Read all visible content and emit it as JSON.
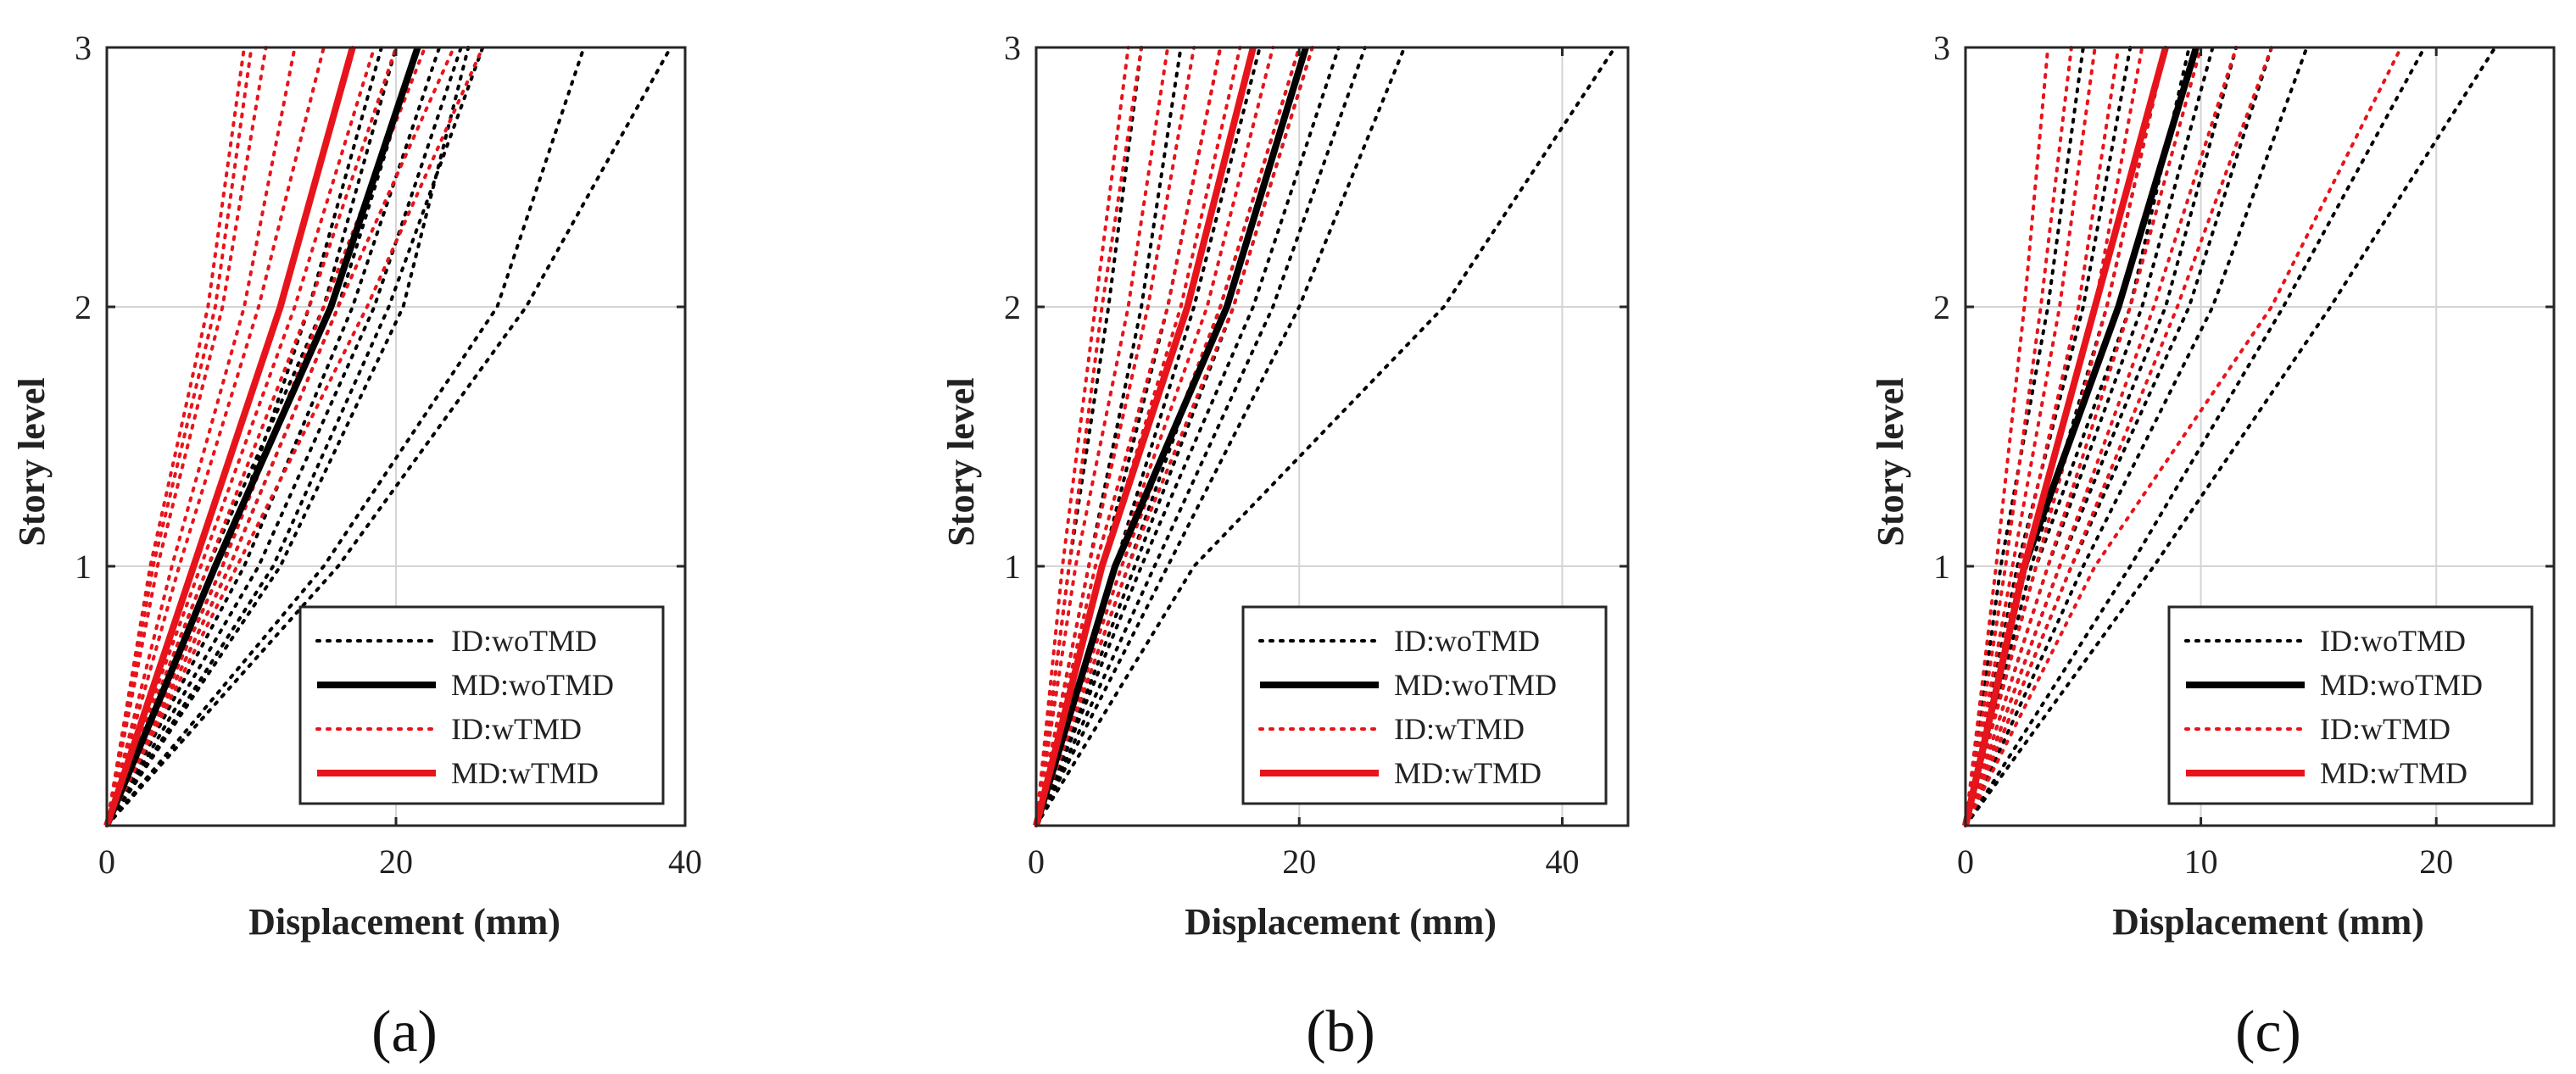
{
  "chart_data": [
    {
      "type": "line",
      "panel_label": "(a)",
      "xlabel": "Displacement (mm)",
      "ylabel": "Story level",
      "xlim": [
        0,
        40
      ],
      "ylim": [
        0,
        3
      ],
      "xticks": [
        0,
        20,
        40
      ],
      "xtick_labels": [
        "0",
        "20",
        "40"
      ],
      "yticks": [
        1,
        2,
        3
      ],
      "ytick_labels": [
        "1",
        "2",
        "3"
      ],
      "grid": true,
      "legend_position": "bottom-right",
      "legend": [
        "ID:woTMD",
        "MD:woTMD",
        "ID:wTMD",
        "MD:wTMD"
      ],
      "y": [
        0,
        1,
        2,
        3
      ],
      "series": [
        {
          "name": "ID:woTMD",
          "style": "dotted",
          "color": "#000000",
          "profiles": [
            [
              0,
              7,
              15,
              20
            ],
            [
              0,
              8.5,
              16,
              21.5
            ],
            [
              0,
              9.5,
              17,
              23
            ],
            [
              0,
              10.5,
              18.5,
              24.5
            ],
            [
              0,
              8,
              14,
              19
            ],
            [
              0,
              11.5,
              19.5,
              26
            ],
            [
              0,
              15,
              27,
              33
            ],
            [
              0,
              16,
              29,
              39
            ],
            [
              0,
              12,
              20.5,
              25
            ]
          ]
        },
        {
          "name": "MD:woTMD",
          "style": "solid",
          "color": "#000000",
          "profiles": [
            [
              0,
              7.5,
              15.5,
              21.5
            ]
          ]
        },
        {
          "name": "ID:wTMD",
          "style": "dotted",
          "color": "#e8141b",
          "profiles": [
            [
              0,
              3,
              7,
              9.5
            ],
            [
              0,
              3.5,
              8,
              11
            ],
            [
              0,
              4.5,
              9.5,
              13
            ],
            [
              0,
              5,
              10.5,
              15
            ],
            [
              0,
              6,
              12,
              17
            ],
            [
              0,
              6.5,
              13,
              18.5
            ],
            [
              0,
              7,
              14,
              20
            ],
            [
              0,
              8,
              15,
              22
            ],
            [
              0,
              8.5,
              16,
              24
            ],
            [
              0,
              9,
              18,
              26
            ],
            [
              0,
              3.2,
              7.5,
              10
            ]
          ]
        },
        {
          "name": "MD:wTMD",
          "style": "solid",
          "color": "#e8141b",
          "profiles": [
            [
              0,
              6,
              12,
              17
            ]
          ]
        }
      ]
    },
    {
      "type": "line",
      "panel_label": "(b)",
      "xlabel": "Displacement (mm)",
      "ylabel": "Story level",
      "xlim": [
        0,
        45
      ],
      "ylim": [
        0,
        3
      ],
      "xticks": [
        0,
        20,
        40
      ],
      "xtick_labels": [
        "0",
        "20",
        "40"
      ],
      "yticks": [
        1,
        2,
        3
      ],
      "ytick_labels": [
        "1",
        "2",
        "3"
      ],
      "grid": true,
      "legend_position": "bottom-right",
      "legend": [
        "ID:woTMD",
        "MD:woTMD",
        "ID:wTMD",
        "MD:wTMD"
      ],
      "y": [
        0,
        1,
        2,
        3
      ],
      "series": [
        {
          "name": "ID:woTMD",
          "style": "dotted",
          "color": "#000000",
          "profiles": [
            [
              0,
              2.5,
              5.5,
              8
            ],
            [
              0,
              4,
              8,
              11
            ],
            [
              0,
              5,
              10,
              14
            ],
            [
              0,
              6,
              12,
              17
            ],
            [
              0,
              7,
              14,
              20
            ],
            [
              0,
              7.5,
              15,
              21
            ],
            [
              0,
              8,
              16.5,
              23
            ],
            [
              0,
              9,
              18,
              25
            ],
            [
              0,
              10,
              20,
              28
            ],
            [
              0,
              12,
              31,
              44
            ]
          ]
        },
        {
          "name": "MD:woTMD",
          "style": "solid",
          "color": "#000000",
          "profiles": [
            [
              0,
              6,
              14.5,
              20.5
            ]
          ]
        },
        {
          "name": "ID:wTMD",
          "style": "dotted",
          "color": "#e8141b",
          "profiles": [
            [
              0,
              2,
              4.5,
              7
            ],
            [
              0,
              2.5,
              5,
              8
            ],
            [
              0,
              3,
              7,
              10
            ],
            [
              0,
              4,
              8.5,
              12
            ],
            [
              0,
              4.5,
              10,
              14
            ],
            [
              0,
              5,
              11,
              15.5
            ],
            [
              0,
              6,
              13,
              18
            ],
            [
              0,
              6.5,
              14,
              20
            ],
            [
              0,
              7,
              15,
              21
            ]
          ]
        },
        {
          "name": "MD:wTMD",
          "style": "solid",
          "color": "#e8141b",
          "profiles": [
            [
              0,
              5,
              11.5,
              16.5
            ]
          ]
        }
      ]
    },
    {
      "type": "line",
      "panel_label": "(c)",
      "xlabel": "Displacement (mm)",
      "ylabel": "Story level",
      "xlim": [
        0,
        25
      ],
      "ylim": [
        0,
        3
      ],
      "xticks": [
        0,
        10,
        20
      ],
      "xtick_labels": [
        "0",
        "10",
        "20"
      ],
      "yticks": [
        1,
        2,
        3
      ],
      "ytick_labels": [
        "1",
        "2",
        "3"
      ],
      "grid": true,
      "legend_position": "bottom-right",
      "legend": [
        "ID:woTMD",
        "MD:woTMD",
        "ID:wTMD",
        "MD:wTMD"
      ],
      "y": [
        0,
        1,
        2,
        3
      ],
      "series": [
        {
          "name": "ID:woTMD",
          "style": "dotted",
          "color": "#000000",
          "profiles": [
            [
              0,
              1.5,
              3.5,
              5
            ],
            [
              0,
              2.2,
              5,
              7
            ],
            [
              0,
              2.8,
              6,
              8.5
            ],
            [
              0,
              3,
              7,
              9.5
            ],
            [
              0,
              3.5,
              7.5,
              10.5
            ],
            [
              0,
              4,
              8.5,
              11.5
            ],
            [
              0,
              4.5,
              9.5,
              13
            ],
            [
              0,
              5,
              10.5,
              14.5
            ],
            [
              0,
              7,
              13.5,
              19.5
            ],
            [
              0,
              8,
              15.5,
              22.5
            ]
          ]
        },
        {
          "name": "MD:woTMD",
          "style": "solid",
          "color": "#000000",
          "profiles": [
            [
              0,
              2.5,
              6.5,
              9.8
            ]
          ]
        },
        {
          "name": "ID:wTMD",
          "style": "dotted",
          "color": "#e8141b",
          "profiles": [
            [
              0,
              1.3,
              2.5,
              3.5
            ],
            [
              0,
              1.7,
              3.2,
              4.5
            ],
            [
              0,
              2,
              4,
              5.5
            ],
            [
              0,
              2.3,
              4.8,
              6.5
            ],
            [
              0,
              2.6,
              5.5,
              7.5
            ],
            [
              0,
              3,
              6,
              8.5
            ],
            [
              0,
              3.5,
              7,
              10
            ],
            [
              0,
              4,
              8,
              11.5
            ],
            [
              0,
              4.5,
              9,
              13
            ],
            [
              0,
              5.5,
              13,
              18.5
            ]
          ]
        },
        {
          "name": "MD:wTMD",
          "style": "solid",
          "color": "#e8141b",
          "profiles": [
            [
              0,
              2.5,
              5.5,
              8.5
            ]
          ]
        }
      ]
    }
  ]
}
